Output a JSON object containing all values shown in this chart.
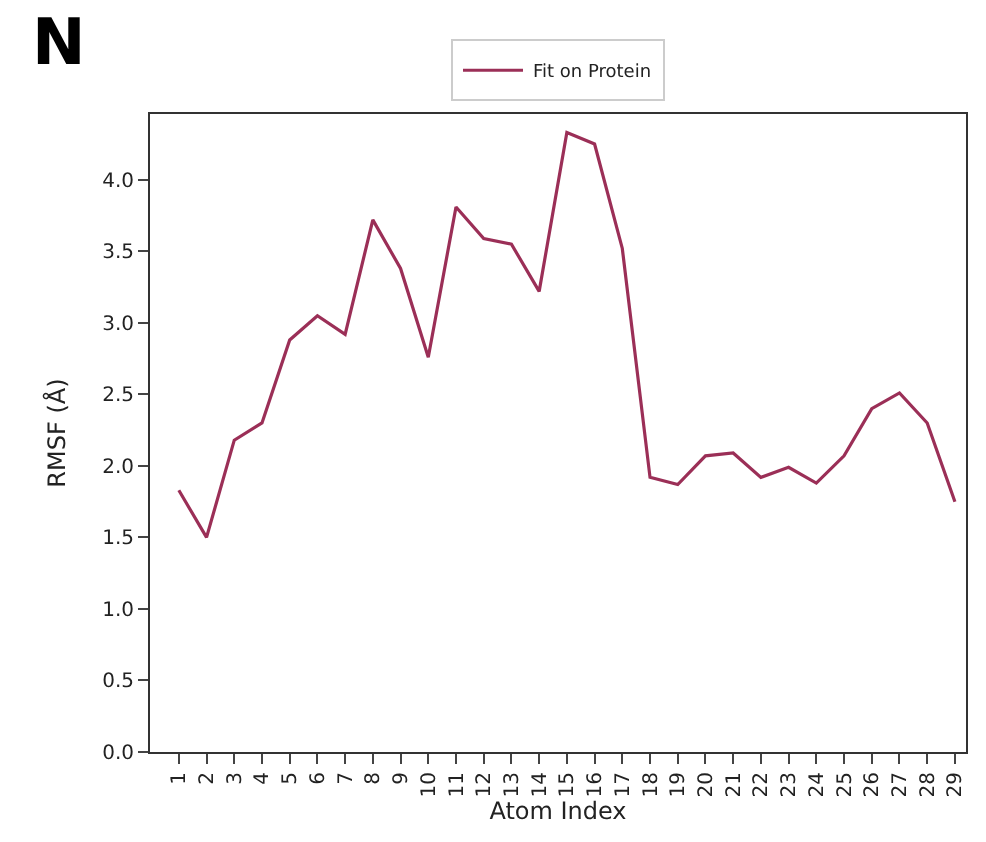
{
  "chart_data": {
    "type": "line",
    "xlabel": "Atom Index",
    "ylabel": "RMSF (Å)",
    "annotations": [
      "N"
    ],
    "categories": [
      "1",
      "2",
      "3",
      "4",
      "5",
      "6",
      "7",
      "8",
      "9",
      "10",
      "11",
      "12",
      "13",
      "14",
      "15",
      "16",
      "17",
      "18",
      "19",
      "20",
      "21",
      "22",
      "23",
      "24",
      "25",
      "26",
      "27",
      "28",
      "29"
    ],
    "series": [
      {
        "name": "Fit on Protein",
        "color": "#9b2f57",
        "values": [
          1.83,
          1.5,
          2.18,
          2.3,
          2.88,
          3.05,
          2.92,
          3.72,
          3.38,
          2.76,
          3.81,
          3.59,
          3.55,
          3.22,
          4.33,
          4.25,
          3.52,
          1.92,
          1.87,
          2.07,
          2.09,
          1.92,
          1.99,
          1.88,
          2.07,
          2.4,
          2.51,
          2.3,
          1.75
        ]
      }
    ],
    "ylim": [
      0,
      4.46
    ],
    "yticks": [
      {
        "value": 0,
        "label": "0.0"
      },
      {
        "value": 0.5,
        "label": "0.5"
      },
      {
        "value": 1,
        "label": "1.0"
      },
      {
        "value": 1.5,
        "label": "1.5"
      },
      {
        "value": 2,
        "label": "2.0"
      },
      {
        "value": 2.5,
        "label": "2.5"
      },
      {
        "value": 3,
        "label": "3.0"
      },
      {
        "value": 3.5,
        "label": "3.5"
      },
      {
        "value": 4,
        "label": "4.0"
      }
    ],
    "legend": "top",
    "marker": "none",
    "line_style": "solid"
  }
}
